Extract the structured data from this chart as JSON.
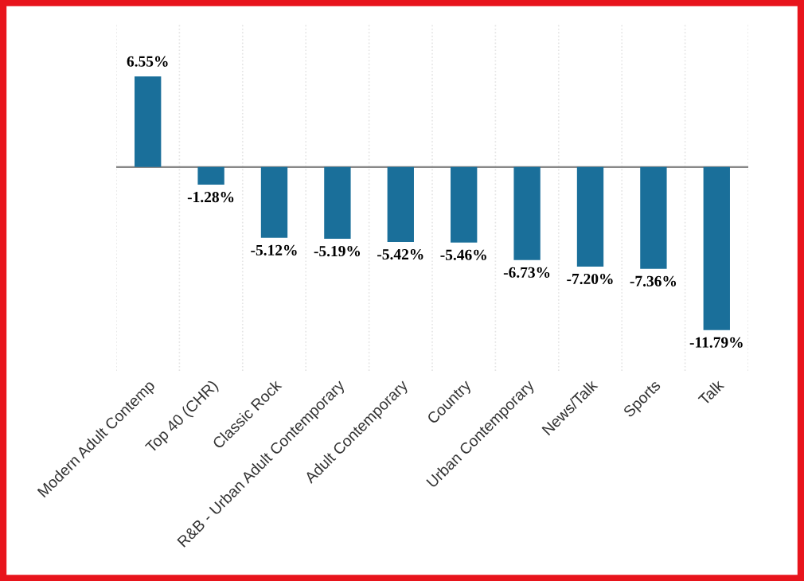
{
  "chart_data": {
    "type": "bar",
    "categories": [
      "Modern Adult Contemp",
      "Top 40 (CHR)",
      "Classic Rock",
      "R&B - Urban Adult Contemporary",
      "Adult Contemporary",
      "Country",
      "Urban Contemporary",
      "News/Talk",
      "Sports",
      "Talk"
    ],
    "values": [
      6.55,
      -1.28,
      -5.12,
      -5.19,
      -5.42,
      -5.46,
      -6.73,
      -7.2,
      -7.36,
      -11.79
    ],
    "value_labels": [
      "6.55%",
      "-1.28%",
      "-5.12%",
      "-5.19%",
      "-5.42%",
      "-5.46%",
      "-6.73%",
      "-7.20%",
      "-7.36%",
      "-11.79%"
    ],
    "color": "#1a6f9a",
    "grid": "x",
    "tick_labels": "x"
  }
}
